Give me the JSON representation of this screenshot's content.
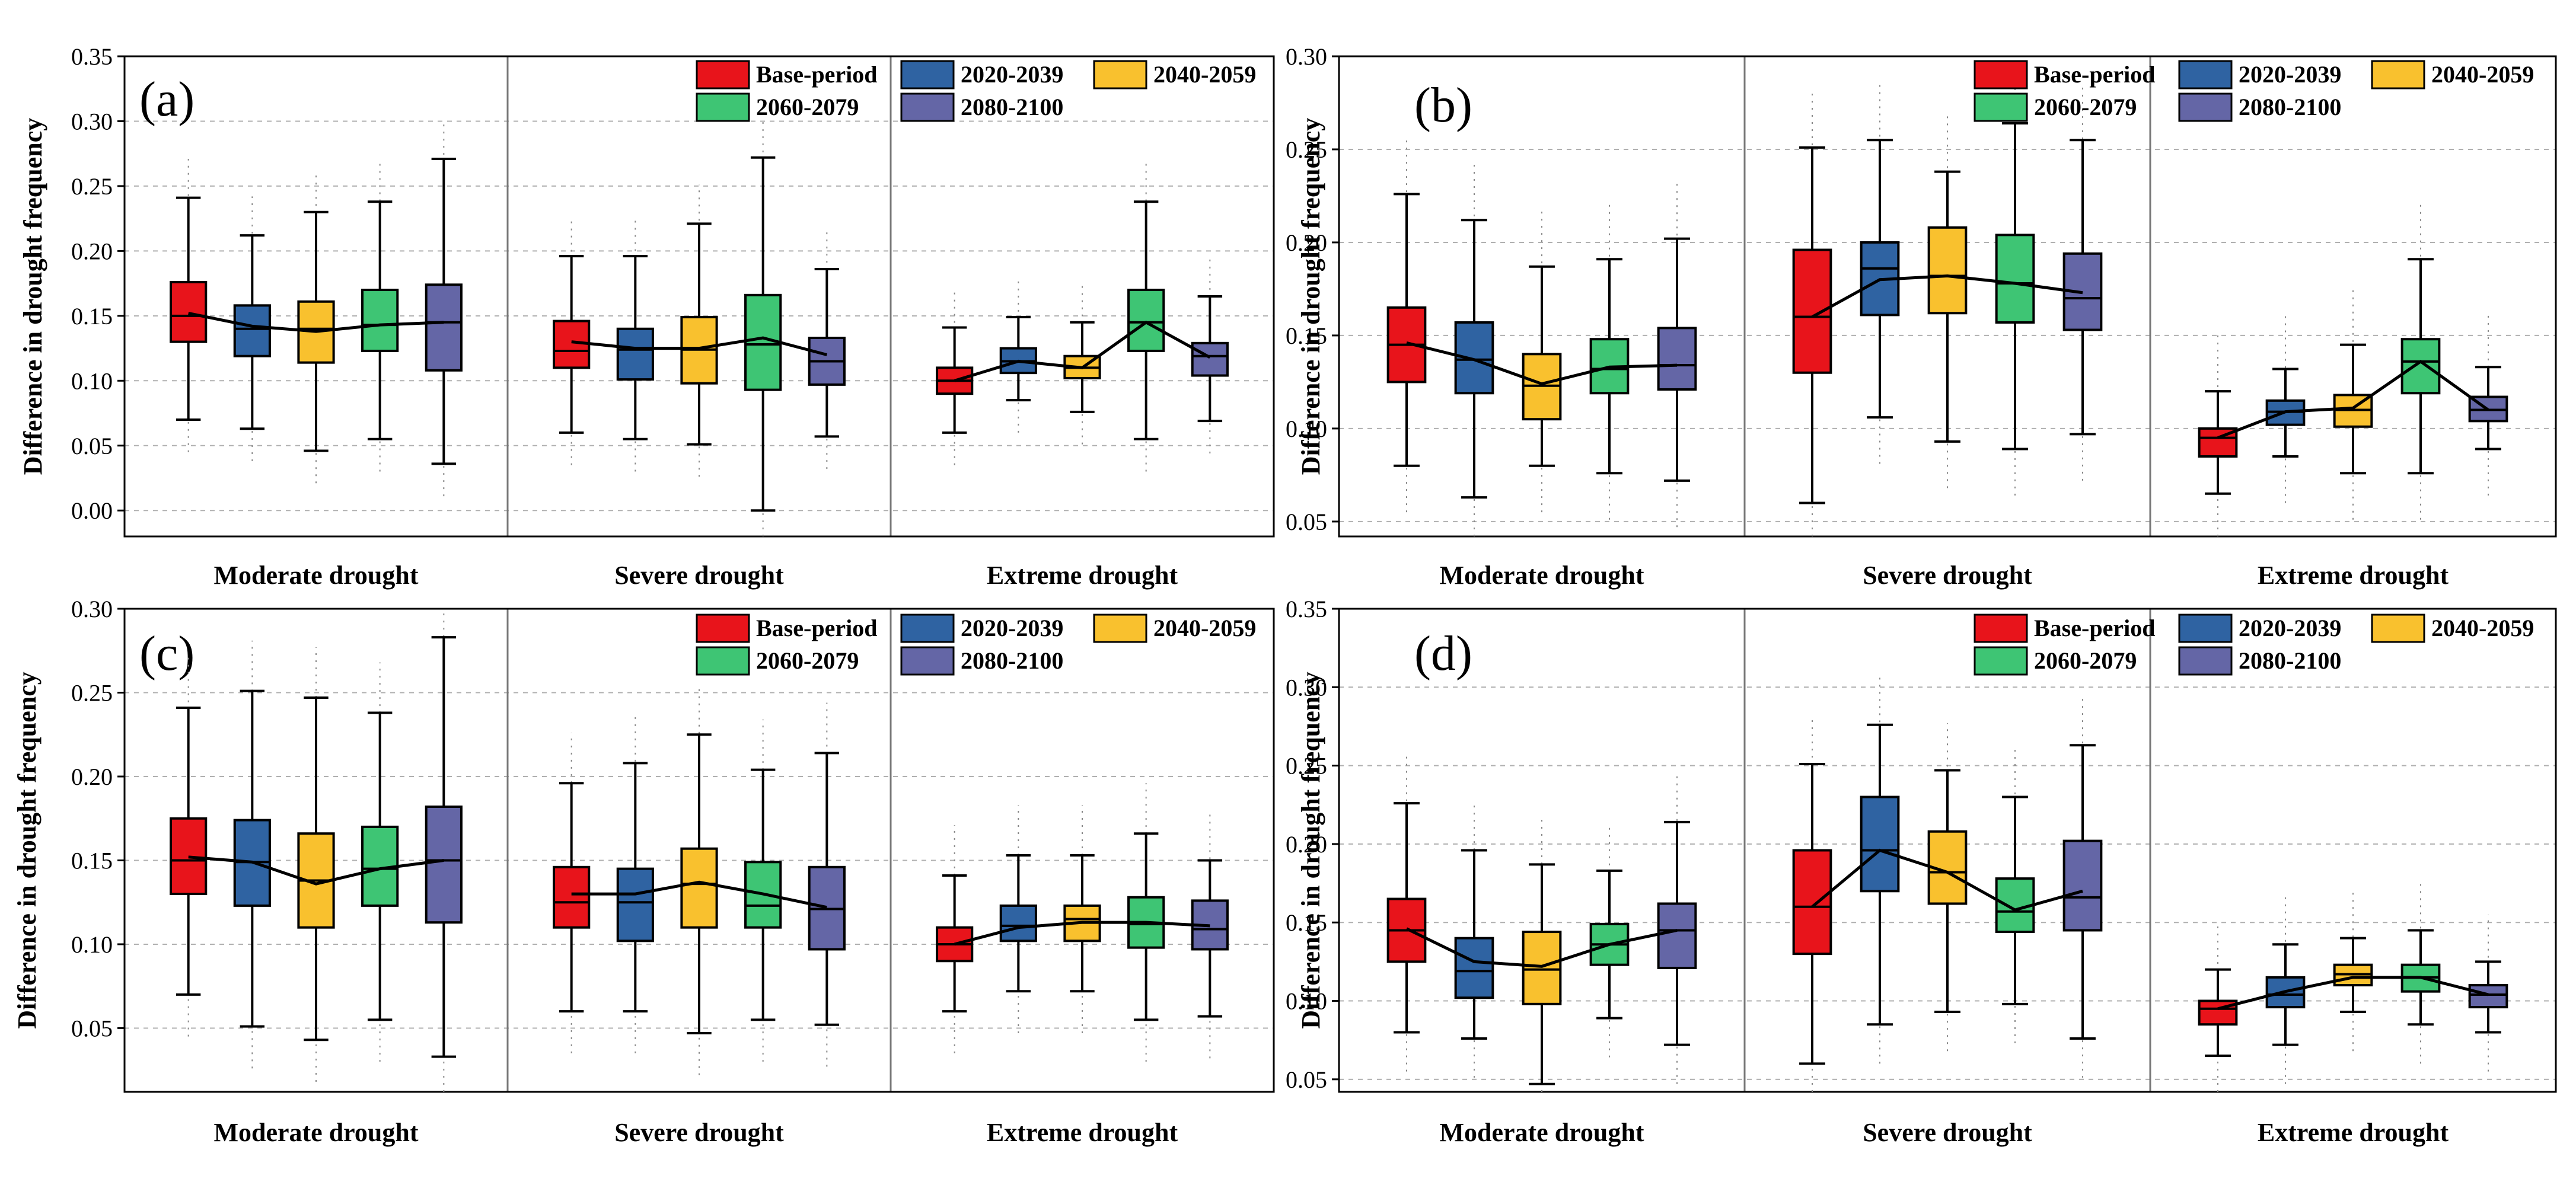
{
  "figure": {
    "series_colors": {
      "Base-period": "#e8141b",
      "2020-2039": "#2f63a2",
      "2040-2059": "#f9c12e",
      "2060-2079": "#3ec574",
      "2080-2100": "#6466a6"
    }
  },
  "chart_data": [
    {
      "type": "box",
      "panel_label": "(a)",
      "ylabel": "Difference in drought frequency",
      "ylim": [
        -0.02,
        0.35
      ],
      "yticks": [
        0.0,
        0.05,
        0.1,
        0.15,
        0.2,
        0.25,
        0.3,
        0.35
      ],
      "ytick_labels": [
        "0.00",
        "0.05",
        "0.10",
        "0.15",
        "0.20",
        "0.25",
        "0.30",
        "0.35"
      ],
      "categories": [
        "Moderate drought",
        "Severe drought",
        "Extreme drought"
      ],
      "legend": [
        "Base-period",
        "2020-2039",
        "2040-2059",
        "2060-2079",
        "2080-2100"
      ],
      "series": [
        {
          "name": "Base-period",
          "boxes": [
            {
              "min": 0.07,
              "q1": 0.13,
              "median": 0.15,
              "q3": 0.176,
              "max": 0.241,
              "mean": 0.152
            },
            {
              "min": 0.06,
              "q1": 0.11,
              "median": 0.123,
              "q3": 0.146,
              "max": 0.196,
              "mean": 0.13
            },
            {
              "min": 0.06,
              "q1": 0.09,
              "median": 0.1,
              "q3": 0.11,
              "max": 0.141,
              "mean": 0.1
            }
          ]
        },
        {
          "name": "2020-2039",
          "boxes": [
            {
              "min": 0.063,
              "q1": 0.119,
              "median": 0.14,
              "q3": 0.158,
              "max": 0.212,
              "mean": 0.142
            },
            {
              "min": 0.055,
              "q1": 0.101,
              "median": 0.124,
              "q3": 0.14,
              "max": 0.196,
              "mean": 0.125
            },
            {
              "min": 0.085,
              "q1": 0.106,
              "median": 0.115,
              "q3": 0.125,
              "max": 0.149,
              "mean": 0.115
            }
          ]
        },
        {
          "name": "2040-2059",
          "boxes": [
            {
              "min": 0.046,
              "q1": 0.114,
              "median": 0.14,
              "q3": 0.161,
              "max": 0.23,
              "mean": 0.138
            },
            {
              "min": 0.051,
              "q1": 0.098,
              "median": 0.124,
              "q3": 0.149,
              "max": 0.221,
              "mean": 0.125
            },
            {
              "min": 0.076,
              "q1": 0.102,
              "median": 0.11,
              "q3": 0.119,
              "max": 0.145,
              "mean": 0.11
            }
          ]
        },
        {
          "name": "2060-2079",
          "boxes": [
            {
              "min": 0.055,
              "q1": 0.123,
              "median": 0.143,
              "q3": 0.17,
              "max": 0.238,
              "mean": 0.143
            },
            {
              "min": 0.0,
              "q1": 0.093,
              "median": 0.128,
              "q3": 0.166,
              "max": 0.272,
              "mean": 0.133
            },
            {
              "min": 0.055,
              "q1": 0.123,
              "median": 0.145,
              "q3": 0.17,
              "max": 0.238,
              "mean": 0.145
            }
          ]
        },
        {
          "name": "2080-2100",
          "boxes": [
            {
              "min": 0.036,
              "q1": 0.108,
              "median": 0.145,
              "q3": 0.174,
              "max": 0.271,
              "mean": 0.145
            },
            {
              "min": 0.057,
              "q1": 0.097,
              "median": 0.115,
              "q3": 0.133,
              "max": 0.186,
              "mean": 0.12
            },
            {
              "min": 0.069,
              "q1": 0.104,
              "median": 0.119,
              "q3": 0.129,
              "max": 0.165,
              "mean": 0.118
            }
          ]
        }
      ]
    },
    {
      "type": "box",
      "panel_label": "(b)",
      "ylabel": "Difference in drought frequency",
      "ylim": [
        0.042,
        0.3
      ],
      "yticks": [
        0.05,
        0.1,
        0.15,
        0.2,
        0.25,
        0.3
      ],
      "ytick_labels": [
        "0.05",
        "0.10",
        "0.15",
        "0.20",
        "0.25",
        "0.30"
      ],
      "categories": [
        "Moderate drought",
        "Severe drought",
        "Extreme drought"
      ],
      "legend": [
        "Base-period",
        "2020-2039",
        "2040-2059",
        "2060-2079",
        "2080-2100"
      ],
      "series": [
        {
          "name": "Base-period",
          "boxes": [
            {
              "min": 0.08,
              "q1": 0.125,
              "median": 0.145,
              "q3": 0.165,
              "max": 0.226,
              "mean": 0.146
            },
            {
              "min": 0.06,
              "q1": 0.13,
              "median": 0.16,
              "q3": 0.196,
              "max": 0.251,
              "mean": 0.16
            },
            {
              "min": 0.065,
              "q1": 0.085,
              "median": 0.095,
              "q3": 0.1,
              "max": 0.12,
              "mean": 0.095
            }
          ]
        },
        {
          "name": "2020-2039",
          "boxes": [
            {
              "min": 0.063,
              "q1": 0.119,
              "median": 0.137,
              "q3": 0.157,
              "max": 0.212,
              "mean": 0.137
            },
            {
              "min": 0.106,
              "q1": 0.161,
              "median": 0.186,
              "q3": 0.2,
              "max": 0.255,
              "mean": 0.18
            },
            {
              "min": 0.085,
              "q1": 0.102,
              "median": 0.109,
              "q3": 0.115,
              "max": 0.132,
              "mean": 0.109
            }
          ]
        },
        {
          "name": "2040-2059",
          "boxes": [
            {
              "min": 0.08,
              "q1": 0.105,
              "median": 0.123,
              "q3": 0.14,
              "max": 0.187,
              "mean": 0.124
            },
            {
              "min": 0.093,
              "q1": 0.162,
              "median": 0.182,
              "q3": 0.208,
              "max": 0.238,
              "mean": 0.182
            },
            {
              "min": 0.076,
              "q1": 0.101,
              "median": 0.11,
              "q3": 0.118,
              "max": 0.145,
              "mean": 0.111
            }
          ]
        },
        {
          "name": "2060-2079",
          "boxes": [
            {
              "min": 0.076,
              "q1": 0.119,
              "median": 0.132,
              "q3": 0.148,
              "max": 0.191,
              "mean": 0.133
            },
            {
              "min": 0.089,
              "q1": 0.157,
              "median": 0.178,
              "q3": 0.204,
              "max": 0.264,
              "mean": 0.178
            },
            {
              "min": 0.076,
              "q1": 0.119,
              "median": 0.136,
              "q3": 0.148,
              "max": 0.191,
              "mean": 0.136
            }
          ]
        },
        {
          "name": "2080-2100",
          "boxes": [
            {
              "min": 0.072,
              "q1": 0.121,
              "median": 0.134,
              "q3": 0.154,
              "max": 0.202,
              "mean": 0.134
            },
            {
              "min": 0.097,
              "q1": 0.153,
              "median": 0.17,
              "q3": 0.194,
              "max": 0.255,
              "mean": 0.173
            },
            {
              "min": 0.089,
              "q1": 0.104,
              "median": 0.11,
              "q3": 0.117,
              "max": 0.133,
              "mean": 0.11
            }
          ]
        }
      ]
    },
    {
      "type": "box",
      "panel_label": "(c)",
      "ylabel": "Difference in drought frequency",
      "ylim": [
        0.012,
        0.3
      ],
      "yticks": [
        0.05,
        0.1,
        0.15,
        0.2,
        0.25,
        0.3
      ],
      "ytick_labels": [
        "0.05",
        "0.10",
        "0.15",
        "0.20",
        "0.25",
        "0.30"
      ],
      "categories": [
        "Moderate drought",
        "Severe drought",
        "Extreme drought"
      ],
      "legend": [
        "Base-period",
        "2020-2039",
        "2040-2059",
        "2060-2079",
        "2080-2100"
      ],
      "series": [
        {
          "name": "Base-period",
          "boxes": [
            {
              "min": 0.07,
              "q1": 0.13,
              "median": 0.15,
              "q3": 0.175,
              "max": 0.241,
              "mean": 0.152
            },
            {
              "min": 0.06,
              "q1": 0.11,
              "median": 0.125,
              "q3": 0.146,
              "max": 0.196,
              "mean": 0.13
            },
            {
              "min": 0.06,
              "q1": 0.09,
              "median": 0.1,
              "q3": 0.11,
              "max": 0.141,
              "mean": 0.1
            }
          ]
        },
        {
          "name": "2020-2039",
          "boxes": [
            {
              "min": 0.051,
              "q1": 0.123,
              "median": 0.149,
              "q3": 0.174,
              "max": 0.251,
              "mean": 0.149
            },
            {
              "min": 0.06,
              "q1": 0.102,
              "median": 0.125,
              "q3": 0.145,
              "max": 0.208,
              "mean": 0.13
            },
            {
              "min": 0.072,
              "q1": 0.102,
              "median": 0.111,
              "q3": 0.123,
              "max": 0.153,
              "mean": 0.11
            }
          ]
        },
        {
          "name": "2040-2059",
          "boxes": [
            {
              "min": 0.043,
              "q1": 0.11,
              "median": 0.138,
              "q3": 0.166,
              "max": 0.247,
              "mean": 0.136
            },
            {
              "min": 0.047,
              "q1": 0.11,
              "median": 0.136,
              "q3": 0.157,
              "max": 0.225,
              "mean": 0.137
            },
            {
              "min": 0.072,
              "q1": 0.102,
              "median": 0.115,
              "q3": 0.123,
              "max": 0.153,
              "mean": 0.113
            }
          ]
        },
        {
          "name": "2060-2079",
          "boxes": [
            {
              "min": 0.055,
              "q1": 0.123,
              "median": 0.145,
              "q3": 0.17,
              "max": 0.238,
              "mean": 0.145
            },
            {
              "min": 0.055,
              "q1": 0.11,
              "median": 0.123,
              "q3": 0.149,
              "max": 0.204,
              "mean": 0.13
            },
            {
              "min": 0.055,
              "q1": 0.098,
              "median": 0.112,
              "q3": 0.128,
              "max": 0.166,
              "mean": 0.113
            }
          ]
        },
        {
          "name": "2080-2100",
          "boxes": [
            {
              "min": 0.033,
              "q1": 0.113,
              "median": 0.15,
              "q3": 0.182,
              "max": 0.283,
              "mean": 0.15
            },
            {
              "min": 0.052,
              "q1": 0.097,
              "median": 0.121,
              "q3": 0.146,
              "max": 0.214,
              "mean": 0.122
            },
            {
              "min": 0.057,
              "q1": 0.097,
              "median": 0.109,
              "q3": 0.126,
              "max": 0.15,
              "mean": 0.111
            }
          ]
        }
      ]
    },
    {
      "type": "box",
      "panel_label": "(d)",
      "ylabel": "Difference in drought frequency",
      "ylim": [
        0.042,
        0.35
      ],
      "yticks": [
        0.05,
        0.1,
        0.15,
        0.2,
        0.25,
        0.3,
        0.35
      ],
      "ytick_labels": [
        "0.05",
        "0.10",
        "0.15",
        "0.20",
        "0.25",
        "0.30",
        "0.35"
      ],
      "categories": [
        "Moderate drought",
        "Severe drought",
        "Extreme drought"
      ],
      "legend": [
        "Base-period",
        "2020-2039",
        "2040-2059",
        "2060-2079",
        "2080-2100"
      ],
      "series": [
        {
          "name": "Base-period",
          "boxes": [
            {
              "min": 0.08,
              "q1": 0.125,
              "median": 0.145,
              "q3": 0.165,
              "max": 0.226,
              "mean": 0.146
            },
            {
              "min": 0.06,
              "q1": 0.13,
              "median": 0.16,
              "q3": 0.196,
              "max": 0.251,
              "mean": 0.16
            },
            {
              "min": 0.065,
              "q1": 0.085,
              "median": 0.095,
              "q3": 0.1,
              "max": 0.12,
              "mean": 0.095
            }
          ]
        },
        {
          "name": "2020-2039",
          "boxes": [
            {
              "min": 0.076,
              "q1": 0.102,
              "median": 0.119,
              "q3": 0.14,
              "max": 0.196,
              "mean": 0.125
            },
            {
              "min": 0.085,
              "q1": 0.17,
              "median": 0.196,
              "q3": 0.23,
              "max": 0.276,
              "mean": 0.196
            },
            {
              "min": 0.072,
              "q1": 0.096,
              "median": 0.104,
              "q3": 0.115,
              "max": 0.136,
              "mean": 0.106
            }
          ]
        },
        {
          "name": "2040-2059",
          "boxes": [
            {
              "min": 0.047,
              "q1": 0.098,
              "median": 0.12,
              "q3": 0.144,
              "max": 0.187,
              "mean": 0.122
            },
            {
              "min": 0.093,
              "q1": 0.162,
              "median": 0.182,
              "q3": 0.208,
              "max": 0.247,
              "mean": 0.182
            },
            {
              "min": 0.093,
              "q1": 0.11,
              "median": 0.117,
              "q3": 0.123,
              "max": 0.14,
              "mean": 0.115
            }
          ]
        },
        {
          "name": "2060-2079",
          "boxes": [
            {
              "min": 0.089,
              "q1": 0.123,
              "median": 0.136,
              "q3": 0.149,
              "max": 0.183,
              "mean": 0.136
            },
            {
              "min": 0.098,
              "q1": 0.144,
              "median": 0.157,
              "q3": 0.178,
              "max": 0.23,
              "mean": 0.158
            },
            {
              "min": 0.085,
              "q1": 0.106,
              "median": 0.115,
              "q3": 0.123,
              "max": 0.145,
              "mean": 0.115
            }
          ]
        },
        {
          "name": "2080-2100",
          "boxes": [
            {
              "min": 0.072,
              "q1": 0.121,
              "median": 0.145,
              "q3": 0.162,
              "max": 0.214,
              "mean": 0.145
            },
            {
              "min": 0.076,
              "q1": 0.145,
              "median": 0.166,
              "q3": 0.202,
              "max": 0.263,
              "mean": 0.17
            },
            {
              "min": 0.08,
              "q1": 0.096,
              "median": 0.104,
              "q3": 0.11,
              "max": 0.125,
              "mean": 0.104
            }
          ]
        }
      ]
    }
  ]
}
